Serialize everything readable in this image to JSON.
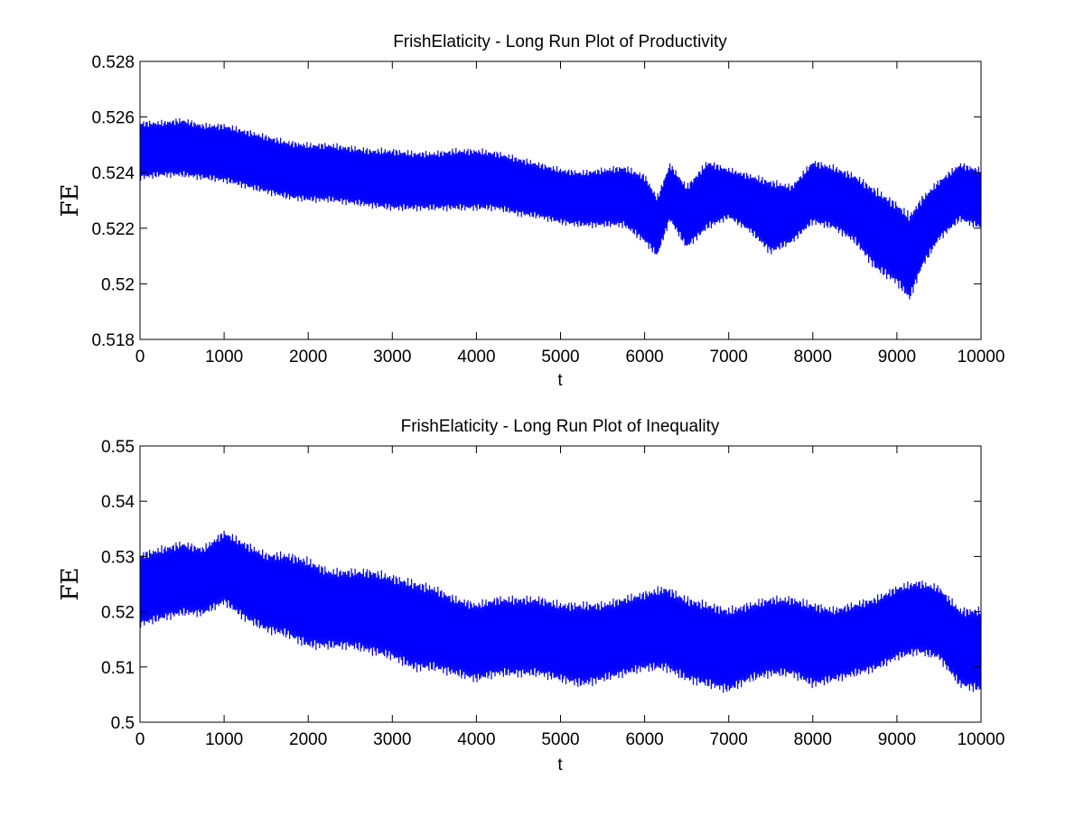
{
  "colors": {
    "series": "#0000ff",
    "axes": "#000000",
    "background": "#ffffff"
  },
  "chart_data": [
    {
      "type": "area",
      "title": "FrishElaticity - Long Run Plot of Productivity",
      "xlabel": "t",
      "ylabel": "FE",
      "xlim": [
        0,
        10000
      ],
      "ylim": [
        0.518,
        0.528
      ],
      "xticks": [
        0,
        1000,
        2000,
        3000,
        4000,
        5000,
        6000,
        7000,
        8000,
        9000,
        10000
      ],
      "xtick_labels": [
        "0",
        "1000",
        "2000",
        "3000",
        "4000",
        "5000",
        "6000",
        "7000",
        "8000",
        "9000",
        "10000"
      ],
      "yticks": [
        0.518,
        0.52,
        0.522,
        0.524,
        0.526,
        0.528
      ],
      "ytick_labels": [
        "0.518",
        "0.52",
        "0.522",
        "0.524",
        "0.526",
        "0.528"
      ],
      "grid": false,
      "legend": "none",
      "series": [
        {
          "color": "#0000ff",
          "x": [
            0,
            250,
            500,
            750,
            1000,
            1250,
            1500,
            1750,
            2000,
            2250,
            2500,
            2750,
            3000,
            3250,
            3500,
            3750,
            4000,
            4250,
            4500,
            4750,
            5000,
            5250,
            5500,
            5750,
            6000,
            6150,
            6300,
            6500,
            6750,
            7000,
            7250,
            7500,
            7750,
            8000,
            8250,
            8500,
            8750,
            9000,
            9150,
            9300,
            9500,
            9750,
            10000
          ],
          "upper": [
            0.5259,
            0.5259,
            0.526,
            0.5258,
            0.5258,
            0.5256,
            0.5254,
            0.5252,
            0.5251,
            0.5251,
            0.525,
            0.5249,
            0.5249,
            0.5248,
            0.5248,
            0.5249,
            0.5249,
            0.5248,
            0.5246,
            0.5244,
            0.5242,
            0.5241,
            0.5242,
            0.5243,
            0.524,
            0.5232,
            0.5244,
            0.5236,
            0.5245,
            0.5242,
            0.524,
            0.5238,
            0.5236,
            0.5245,
            0.5243,
            0.524,
            0.5235,
            0.523,
            0.5226,
            0.5232,
            0.5238,
            0.5244,
            0.5242
          ],
          "lower": [
            0.5237,
            0.5238,
            0.5238,
            0.5237,
            0.5236,
            0.5234,
            0.5232,
            0.523,
            0.5229,
            0.5229,
            0.5228,
            0.5227,
            0.5226,
            0.5226,
            0.5226,
            0.5226,
            0.5226,
            0.5226,
            0.5224,
            0.5223,
            0.5221,
            0.522,
            0.522,
            0.522,
            0.5214,
            0.5209,
            0.5222,
            0.5212,
            0.5219,
            0.5223,
            0.5218,
            0.521,
            0.5214,
            0.5221,
            0.5219,
            0.5214,
            0.5204,
            0.5199,
            0.5193,
            0.5205,
            0.5215,
            0.5222,
            0.5219
          ]
        }
      ]
    },
    {
      "type": "area",
      "title": "FrishElaticity - Long Run Plot of Inequality",
      "xlabel": "t",
      "ylabel": "FE",
      "xlim": [
        0,
        10000
      ],
      "ylim": [
        0.5,
        0.55
      ],
      "xticks": [
        0,
        1000,
        2000,
        3000,
        4000,
        5000,
        6000,
        7000,
        8000,
        9000,
        10000
      ],
      "xtick_labels": [
        "0",
        "1000",
        "2000",
        "3000",
        "4000",
        "5000",
        "6000",
        "7000",
        "8000",
        "9000",
        "10000"
      ],
      "yticks": [
        0.5,
        0.51,
        0.52,
        0.53,
        0.54,
        0.55
      ],
      "ytick_labels": [
        "0.5",
        "0.51",
        "0.52",
        "0.53",
        "0.54",
        "0.55"
      ],
      "grid": false,
      "legend": "none",
      "series": [
        {
          "color": "#0000ff",
          "x": [
            0,
            250,
            500,
            750,
            1000,
            1250,
            1500,
            1750,
            2000,
            2250,
            2500,
            2750,
            3000,
            3250,
            3500,
            3750,
            4000,
            4250,
            4500,
            4750,
            5000,
            5250,
            5500,
            5750,
            6000,
            6250,
            6500,
            6750,
            7000,
            7250,
            7500,
            7750,
            8000,
            8250,
            8500,
            8750,
            9000,
            9250,
            9500,
            9750,
            10000
          ],
          "upper": [
            0.531,
            0.532,
            0.533,
            0.532,
            0.535,
            0.533,
            0.531,
            0.531,
            0.53,
            0.528,
            0.528,
            0.528,
            0.527,
            0.526,
            0.525,
            0.523,
            0.522,
            0.523,
            0.523,
            0.523,
            0.522,
            0.522,
            0.522,
            0.523,
            0.524,
            0.525,
            0.523,
            0.522,
            0.521,
            0.522,
            0.523,
            0.523,
            0.522,
            0.521,
            0.522,
            0.523,
            0.525,
            0.526,
            0.525,
            0.521,
            0.521
          ],
          "lower": [
            0.517,
            0.518,
            0.519,
            0.519,
            0.521,
            0.518,
            0.516,
            0.515,
            0.513,
            0.513,
            0.513,
            0.512,
            0.511,
            0.509,
            0.509,
            0.508,
            0.507,
            0.508,
            0.508,
            0.508,
            0.507,
            0.506,
            0.507,
            0.508,
            0.509,
            0.509,
            0.507,
            0.506,
            0.505,
            0.507,
            0.508,
            0.508,
            0.506,
            0.507,
            0.508,
            0.509,
            0.511,
            0.512,
            0.511,
            0.506,
            0.505
          ]
        }
      ]
    }
  ]
}
